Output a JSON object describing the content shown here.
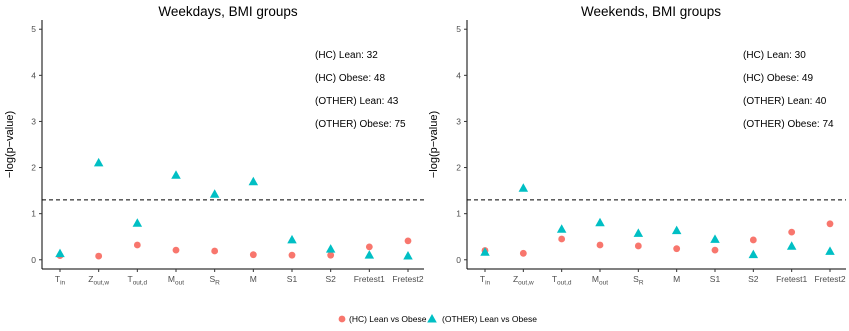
{
  "chart_data": [
    {
      "type": "scatter",
      "title": "Weekdays, BMI groups",
      "ylabel": "−log(p−value)",
      "ylim": [
        -0.2,
        5.2
      ],
      "yticks": [
        0,
        1,
        2,
        3,
        4,
        5
      ],
      "categories": [
        {
          "base": "T",
          "sub": "in"
        },
        {
          "base": "Z",
          "sub": "out,w"
        },
        {
          "base": "T",
          "sub": "out,d"
        },
        {
          "base": "M",
          "sub": "out"
        },
        {
          "base": "S",
          "sub": "R"
        },
        {
          "base": "M",
          "sub": ""
        },
        {
          "base": "S1",
          "sub": ""
        },
        {
          "base": "S2",
          "sub": ""
        },
        {
          "base": "Fretest1",
          "sub": ""
        },
        {
          "base": "Fretest2",
          "sub": ""
        }
      ],
      "reference_line": 1.3,
      "group_counts": [
        "(HC) Lean: 32",
        "(HC) Obese: 48",
        "(OTHER) Lean: 43",
        "(OTHER) Obese: 75"
      ],
      "series": [
        {
          "name": "(HC) Lean vs Obese",
          "marker": "circle",
          "color": "#F8766D",
          "values": [
            0.09,
            0.08,
            0.32,
            0.21,
            0.19,
            0.11,
            0.1,
            0.1,
            0.28,
            0.41
          ]
        },
        {
          "name": "(OTHER) Lean vs Obese",
          "marker": "triangle",
          "color": "#00BFC4",
          "values": [
            0.13,
            2.1,
            0.79,
            1.83,
            1.42,
            1.69,
            0.43,
            0.23,
            0.1,
            0.08
          ]
        }
      ]
    },
    {
      "type": "scatter",
      "title": "Weekends, BMI groups",
      "ylabel": "−log(p−value)",
      "ylim": [
        -0.2,
        5.2
      ],
      "yticks": [
        0,
        1,
        2,
        3,
        4,
        5
      ],
      "categories": [
        {
          "base": "T",
          "sub": "in"
        },
        {
          "base": "Z",
          "sub": "out,w"
        },
        {
          "base": "T",
          "sub": "out,d"
        },
        {
          "base": "M",
          "sub": "out"
        },
        {
          "base": "S",
          "sub": "R"
        },
        {
          "base": "M",
          "sub": ""
        },
        {
          "base": "S1",
          "sub": ""
        },
        {
          "base": "S2",
          "sub": ""
        },
        {
          "base": "Fretest1",
          "sub": ""
        },
        {
          "base": "Fretest2",
          "sub": ""
        }
      ],
      "reference_line": 1.3,
      "group_counts": [
        "(HC) Lean: 30",
        "(HC) Obese: 49",
        "(OTHER) Lean: 40",
        "(OTHER) Obese: 74"
      ],
      "series": [
        {
          "name": "(HC) Lean vs Obese",
          "marker": "circle",
          "color": "#F8766D",
          "values": [
            0.2,
            0.14,
            0.45,
            0.32,
            0.3,
            0.24,
            0.21,
            0.43,
            0.6,
            0.78
          ]
        },
        {
          "name": "(OTHER) Lean vs Obese",
          "marker": "triangle",
          "color": "#00BFC4",
          "values": [
            0.16,
            1.55,
            0.66,
            0.8,
            0.57,
            0.63,
            0.44,
            0.11,
            0.29,
            0.18
          ]
        }
      ]
    }
  ],
  "legend": {
    "placement": "bottom",
    "items": [
      {
        "label": "(HC) Lean vs Obese",
        "marker": "circle",
        "color": "#F8766D"
      },
      {
        "label": "(OTHER) Lean vs Obese",
        "marker": "triangle",
        "color": "#00BFC4"
      }
    ]
  }
}
